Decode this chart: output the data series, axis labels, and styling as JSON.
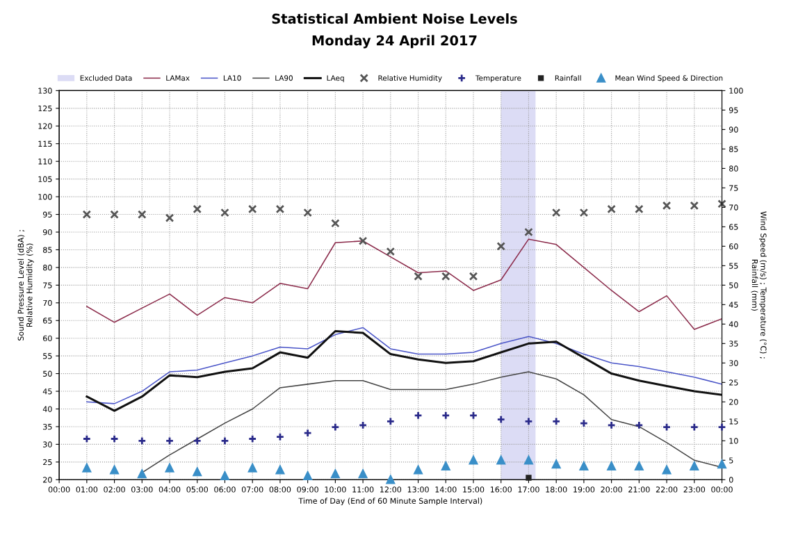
{
  "chart_data": {
    "type": "line",
    "title": "Statistical Ambient Noise Levels",
    "subtitle": "Monday 24 April 2017",
    "xlabel": "Time of Day (End of 60 Minute Sample Interval)",
    "ylabel": "Sound Pressure Level (dBA) ;\nRelative Humidity (%)",
    "y2label": "Wind Speed (m/s) ; Temperature (°C) ;\nRainfall (mm)",
    "x": [
      1,
      2,
      3,
      4,
      5,
      6,
      7,
      8,
      9,
      10,
      11,
      12,
      13,
      14,
      15,
      16,
      17,
      18,
      19,
      20,
      21,
      22,
      23,
      24
    ],
    "xlim": [
      0,
      24
    ],
    "xticks": [
      {
        "value": 0,
        "label": "00:00"
      },
      {
        "value": 1,
        "label": "01:00"
      },
      {
        "value": 2,
        "label": "02:00"
      },
      {
        "value": 3,
        "label": "03:00"
      },
      {
        "value": 4,
        "label": "04:00"
      },
      {
        "value": 5,
        "label": "05:00"
      },
      {
        "value": 6,
        "label": "06:00"
      },
      {
        "value": 7,
        "label": "07:00"
      },
      {
        "value": 8,
        "label": "08:00"
      },
      {
        "value": 9,
        "label": "09:00"
      },
      {
        "value": 10,
        "label": "10:00"
      },
      {
        "value": 11,
        "label": "11:00"
      },
      {
        "value": 12,
        "label": "12:00"
      },
      {
        "value": 13,
        "label": "13:00"
      },
      {
        "value": 14,
        "label": "14:00"
      },
      {
        "value": 15,
        "label": "15:00"
      },
      {
        "value": 16,
        "label": "16:00"
      },
      {
        "value": 17,
        "label": "17:00"
      },
      {
        "value": 18,
        "label": "18:00"
      },
      {
        "value": 19,
        "label": "19:00"
      },
      {
        "value": 20,
        "label": "20:00"
      },
      {
        "value": 21,
        "label": "21:00"
      },
      {
        "value": 22,
        "label": "22:00"
      },
      {
        "value": 23,
        "label": "23:00"
      },
      {
        "value": 24,
        "label": "00:00"
      }
    ],
    "ylim": [
      20,
      130
    ],
    "yticks": [
      20,
      25,
      30,
      35,
      40,
      45,
      50,
      55,
      60,
      65,
      70,
      75,
      80,
      85,
      90,
      95,
      100,
      105,
      110,
      115,
      120,
      125,
      130
    ],
    "y2lim": [
      0,
      100
    ],
    "y2ticks": [
      0,
      5,
      10,
      15,
      20,
      25,
      30,
      35,
      40,
      45,
      50,
      55,
      60,
      65,
      70,
      75,
      80,
      85,
      90,
      95,
      100
    ],
    "grid": true,
    "legend": "top",
    "bands": [
      {
        "axis": "x",
        "from": 16,
        "to": 17.25,
        "label": "Excluded Data",
        "color": "#dcdcf5"
      }
    ],
    "series": [
      {
        "name": "LAMax",
        "type": "line",
        "color": "#8b2a4a",
        "values": [
          69,
          64.5,
          68.5,
          72.5,
          66.5,
          71.5,
          70,
          75.5,
          74,
          87,
          87.5,
          83,
          78.5,
          79,
          73.5,
          76.5,
          88,
          86.5,
          80,
          73.5,
          67.5,
          72,
          62.5,
          65.5
        ]
      },
      {
        "name": "LA10",
        "type": "line",
        "color": "#4a55c8",
        "values": [
          42,
          41.5,
          45,
          50.5,
          51,
          53,
          55,
          57.5,
          57,
          61,
          63,
          57,
          55.5,
          55.5,
          56,
          58.5,
          60.5,
          58.5,
          55.5,
          53,
          52,
          50.5,
          49,
          47
        ]
      },
      {
        "name": "LA90",
        "type": "line",
        "color": "#444444",
        "values": [
          null,
          null,
          22,
          27,
          31.5,
          36,
          40,
          46,
          47,
          48,
          48,
          45.5,
          45.5,
          45.5,
          47,
          49,
          50.5,
          48.5,
          44,
          37,
          35,
          30.5,
          25.5,
          23.5
        ]
      },
      {
        "name": "LAeq",
        "type": "line",
        "color": "#111111",
        "values": [
          43.5,
          39.5,
          43.5,
          49.5,
          49,
          50.5,
          51.5,
          56,
          54.5,
          62,
          61.5,
          55.5,
          54,
          53,
          53.5,
          56,
          58.5,
          59,
          54.5,
          50,
          48,
          46.5,
          45,
          44
        ]
      },
      {
        "name": "Relative Humidity",
        "type": "scatter",
        "marker": "cross",
        "color": "#555555",
        "values": [
          95,
          95,
          95,
          94,
          96.5,
          95.5,
          96.5,
          96.5,
          95.5,
          92.5,
          87.5,
          84.5,
          77.5,
          77.5,
          77.5,
          86,
          90,
          95.5,
          95.5,
          96.5,
          96.5,
          97.5,
          97.5,
          98
        ]
      },
      {
        "name": "Temperature",
        "type": "scatter",
        "marker": "plus",
        "axis": "y2",
        "color": "#2a2a8a",
        "values": [
          10.5,
          10.5,
          10,
          10,
          10,
          10,
          10.5,
          11,
          12,
          13.5,
          14,
          15,
          16.5,
          16.5,
          16.5,
          15.5,
          15,
          15,
          14.5,
          14,
          14,
          13.5,
          13.5,
          13.5
        ]
      },
      {
        "name": "Rainfall",
        "type": "scatter",
        "marker": "square",
        "axis": "y2",
        "color": "#222222",
        "values": [
          null,
          null,
          null,
          null,
          null,
          null,
          null,
          null,
          null,
          null,
          null,
          null,
          null,
          null,
          null,
          null,
          0.5,
          null,
          null,
          null,
          null,
          null,
          null,
          null
        ]
      },
      {
        "name": "Mean Wind Speed & Direction",
        "type": "scatter",
        "marker": "triangle",
        "axis": "y2",
        "color": "#3a8fc8",
        "values": [
          3,
          2.5,
          1.5,
          3,
          2,
          1,
          3,
          2.5,
          1,
          1.5,
          1.5,
          0,
          2.5,
          3.5,
          5,
          5,
          5,
          4,
          3.5,
          3.5,
          3.5,
          2.5,
          3.5,
          4
        ]
      }
    ]
  }
}
